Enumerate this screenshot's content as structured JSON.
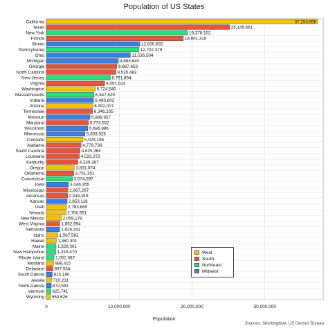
{
  "chart_data": {
    "type": "bar",
    "orientation": "horizontal",
    "title": "Population of US States",
    "xlabel": "Population",
    "ylabel": "",
    "xlim": [
      0,
      38000000
    ],
    "x_ticks": [
      "0",
      "10,000,000",
      "20,000,000",
      "30,000,000"
    ],
    "x_tick_values": [
      0,
      10000000,
      20000000,
      30000000
    ],
    "grid": true,
    "legend_position": "bottom-right",
    "source": "Sources: Stockingblue, US Census Bureau",
    "regions": [
      {
        "name": "West",
        "color": "#f5c400"
      },
      {
        "name": "South",
        "color": "#e8553a"
      },
      {
        "name": "Northeast",
        "color": "#27e07a"
      },
      {
        "name": "Midwest",
        "color": "#3b7fe3"
      }
    ],
    "bars": [
      {
        "state": "California",
        "value": 37253956,
        "label": "37,253,956",
        "region": "West"
      },
      {
        "state": "Texas",
        "value": 25145561,
        "label": "25,145,561",
        "region": "South"
      },
      {
        "state": "New York",
        "value": 19378102,
        "label": "19,378,102",
        "region": "Northeast"
      },
      {
        "state": "Florida",
        "value": 18801310,
        "label": "18,801,310",
        "region": "South"
      },
      {
        "state": "Illinois",
        "value": 12830632,
        "label": "12,830,632",
        "region": "Midwest"
      },
      {
        "state": "Pennsylvania",
        "value": 12702379,
        "label": "12,702,379",
        "region": "Northeast"
      },
      {
        "state": "Ohio",
        "value": 11536504,
        "label": "11,536,504",
        "region": "Midwest"
      },
      {
        "state": "Michigan",
        "value": 9883640,
        "label": "9,883,640",
        "region": "Midwest"
      },
      {
        "state": "Georgia",
        "value": 9687653,
        "label": "9,687,653",
        "region": "South"
      },
      {
        "state": "North Carolina",
        "value": 9535483,
        "label": "9,535,483",
        "region": "South"
      },
      {
        "state": "New Jersey",
        "value": 8791894,
        "label": "8,791,894",
        "region": "Northeast"
      },
      {
        "state": "Virginia",
        "value": 8001024,
        "label": "8,001,024",
        "region": "South"
      },
      {
        "state": "Washington",
        "value": 6724540,
        "label": "6,724,540",
        "region": "West"
      },
      {
        "state": "Massachusetts",
        "value": 6547629,
        "label": "6,547,629",
        "region": "Northeast"
      },
      {
        "state": "Indiana",
        "value": 6483802,
        "label": "6,483,802",
        "region": "Midwest"
      },
      {
        "state": "Arizona",
        "value": 6392017,
        "label": "6,392,017",
        "region": "West"
      },
      {
        "state": "Tennessee",
        "value": 6346105,
        "label": "6,346,105",
        "region": "South"
      },
      {
        "state": "Missouri",
        "value": 5988927,
        "label": "5,988,927",
        "region": "Midwest"
      },
      {
        "state": "Maryland",
        "value": 5773552,
        "label": "5,773,552",
        "region": "South"
      },
      {
        "state": "Wisconsin",
        "value": 5686986,
        "label": "5,686,986",
        "region": "Midwest"
      },
      {
        "state": "Minnesota",
        "value": 5303925,
        "label": "5,303,925",
        "region": "Midwest"
      },
      {
        "state": "Colorado",
        "value": 5029196,
        "label": "5,029,196",
        "region": "West"
      },
      {
        "state": "Alabama",
        "value": 4779736,
        "label": "4,779,736",
        "region": "South"
      },
      {
        "state": "South Carolina",
        "value": 4625364,
        "label": "4,625,364",
        "region": "South"
      },
      {
        "state": "Louisiana",
        "value": 4533372,
        "label": "4,533,372",
        "region": "South"
      },
      {
        "state": "Kentucky",
        "value": 4339367,
        "label": "4,339,367",
        "region": "South"
      },
      {
        "state": "Oregon",
        "value": 3831074,
        "label": "3,831,074",
        "region": "West"
      },
      {
        "state": "Oklahoma",
        "value": 3751351,
        "label": "3,751,351",
        "region": "South"
      },
      {
        "state": "Connecticut",
        "value": 3574097,
        "label": "3,574,097",
        "region": "Northeast"
      },
      {
        "state": "Iowa",
        "value": 3046355,
        "label": "3,046,355",
        "region": "Midwest"
      },
      {
        "state": "Mississippi",
        "value": 2967297,
        "label": "2,967,297",
        "region": "South"
      },
      {
        "state": "Arkansas",
        "value": 2915918,
        "label": "2,915,918",
        "region": "South"
      },
      {
        "state": "Kansas",
        "value": 2853118,
        "label": "2,853,118",
        "region": "Midwest"
      },
      {
        "state": "Utah",
        "value": 2763885,
        "label": "2,763,885",
        "region": "West"
      },
      {
        "state": "Nevada",
        "value": 2700551,
        "label": "2,700,551",
        "region": "West"
      },
      {
        "state": "New Mexico",
        "value": 2059179,
        "label": "2,059,179",
        "region": "West"
      },
      {
        "state": "West Virginia",
        "value": 1852994,
        "label": "1,852,994",
        "region": "South"
      },
      {
        "state": "Nebraska",
        "value": 1826341,
        "label": "1,826,341",
        "region": "Midwest"
      },
      {
        "state": "Idaho",
        "value": 1567582,
        "label": "1,567,582",
        "region": "West"
      },
      {
        "state": "Hawaii",
        "value": 1360301,
        "label": "1,360,301",
        "region": "West"
      },
      {
        "state": "Maine",
        "value": 1328361,
        "label": "1,328,361",
        "region": "Northeast"
      },
      {
        "state": "New Hampshire",
        "value": 1316470,
        "label": "1,316,470",
        "region": "Northeast"
      },
      {
        "state": "Rhode Island",
        "value": 1052567,
        "label": "1,052,567",
        "region": "Northeast"
      },
      {
        "state": "Montana",
        "value": 989415,
        "label": "989,415",
        "region": "West"
      },
      {
        "state": "Delaware",
        "value": 897934,
        "label": "897,934",
        "region": "South"
      },
      {
        "state": "South Dakota",
        "value": 814180,
        "label": "814,180",
        "region": "Midwest"
      },
      {
        "state": "Alaska",
        "value": 710231,
        "label": "710,231",
        "region": "West"
      },
      {
        "state": "North Dakota",
        "value": 672591,
        "label": "672,591",
        "region": "Midwest"
      },
      {
        "state": "Vermont",
        "value": 625741,
        "label": "625,741",
        "region": "Northeast"
      },
      {
        "state": "Wyoming",
        "value": 563626,
        "label": "563,626",
        "region": "West"
      }
    ]
  }
}
